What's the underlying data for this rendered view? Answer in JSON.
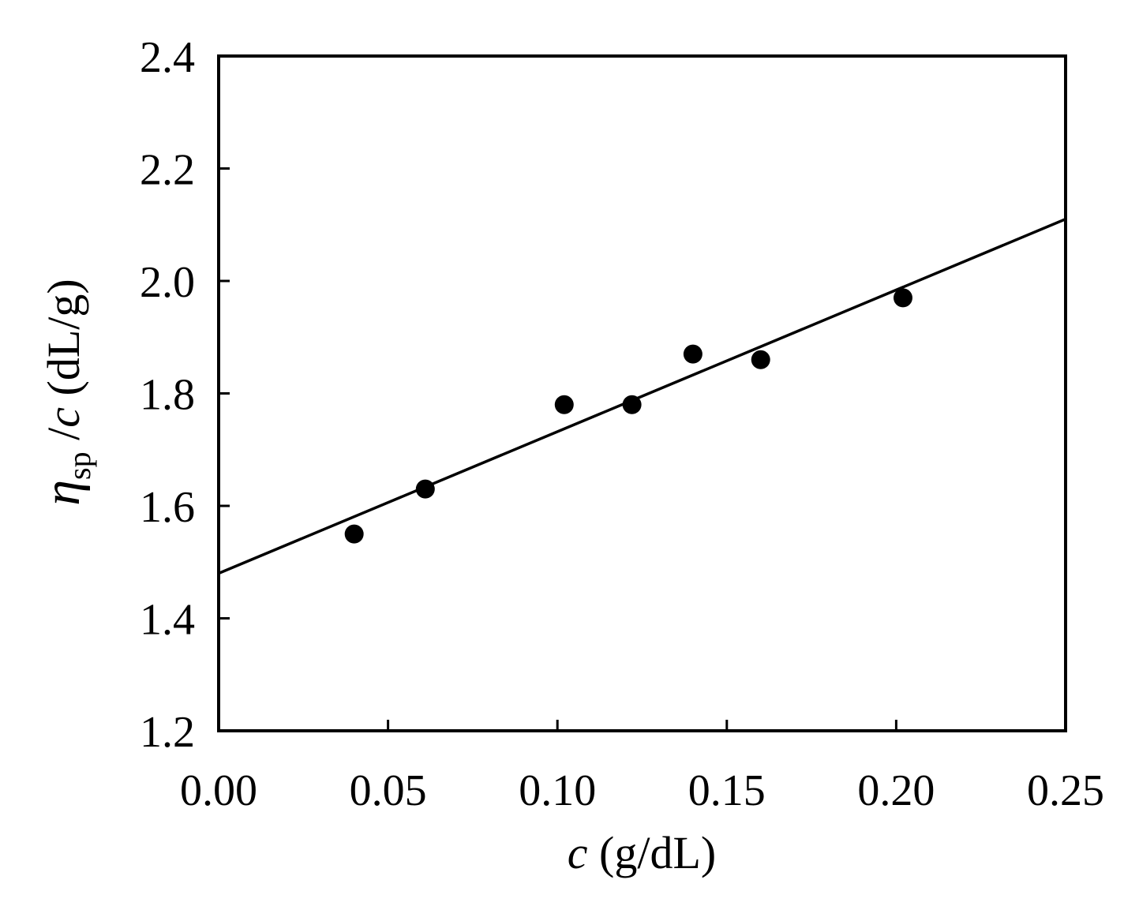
{
  "chart_data": {
    "type": "scatter",
    "x_ticks": [
      "0.00",
      "0.05",
      "0.10",
      "0.15",
      "0.20",
      "0.25"
    ],
    "y_ticks": [
      "1.2",
      "1.4",
      "1.6",
      "1.8",
      "2.0",
      "2.2",
      "2.4"
    ],
    "xlim": [
      0,
      0.25
    ],
    "ylim": [
      1.2,
      2.4
    ],
    "xlabel": {
      "var": "c",
      "rest": " (g/dL)"
    },
    "ylabel": {
      "var": "η",
      "sub": "sp",
      "mid": " /",
      "var2": "c",
      "rest": " (dL/g)"
    },
    "points": [
      {
        "x": 0.04,
        "y": 1.55
      },
      {
        "x": 0.061,
        "y": 1.63
      },
      {
        "x": 0.102,
        "y": 1.78
      },
      {
        "x": 0.122,
        "y": 1.78
      },
      {
        "x": 0.14,
        "y": 1.87
      },
      {
        "x": 0.16,
        "y": 1.86
      },
      {
        "x": 0.202,
        "y": 1.97
      }
    ],
    "fit_line": {
      "intercept": 1.48,
      "slope": 2.52
    },
    "grid": false,
    "marker_color": "#000000"
  }
}
